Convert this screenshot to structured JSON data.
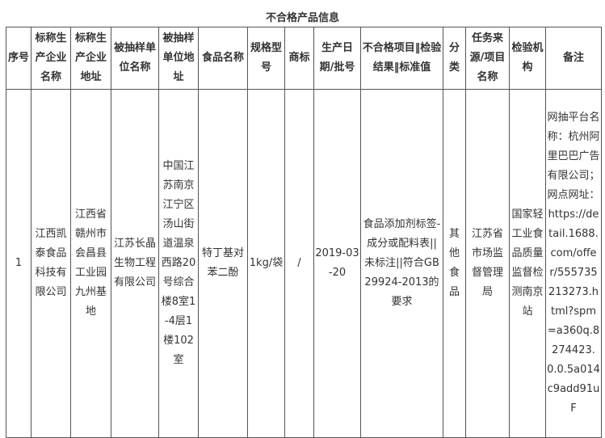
{
  "title": "不合格产品信息",
  "headers": [
    "序号",
    "标称生产企业名称",
    "标称生产企业地址",
    "被抽样单位名称",
    "被抽样单位地址",
    "食品名称",
    "规格型号",
    "商标",
    "生产日期/批号",
    "不合格项目‖检验结果‖标准值",
    "分类",
    "任务来源/项目名称",
    "检验机构",
    "备注"
  ],
  "rows": [
    [
      "1",
      "江西凯泰食品科技有限公司",
      "江西省赣州市会昌县工业园九州基地",
      "江苏长晶生物工程有限公司",
      "中国江苏南京江宁区汤山街道温泉西路20号综合楼8室1-4层1楼102室",
      "特丁基对苯二酚",
      "1kg/袋",
      "/",
      "2019-03-20",
      "食品添加剂标签-成分或配料表||未标注||符合GB29924-2013的要求",
      "其他食品",
      "江苏省市场监督管理局",
      "国家轻工业食品质量监督检测南京站",
      "网抽平台名称：杭州阿里巴巴广告有限公司；网点网址：https://detail.1688.com/offer/555735213273.html?spm=a360q.8274423.0.0.5a014c9add91uF"
    ]
  ]
}
